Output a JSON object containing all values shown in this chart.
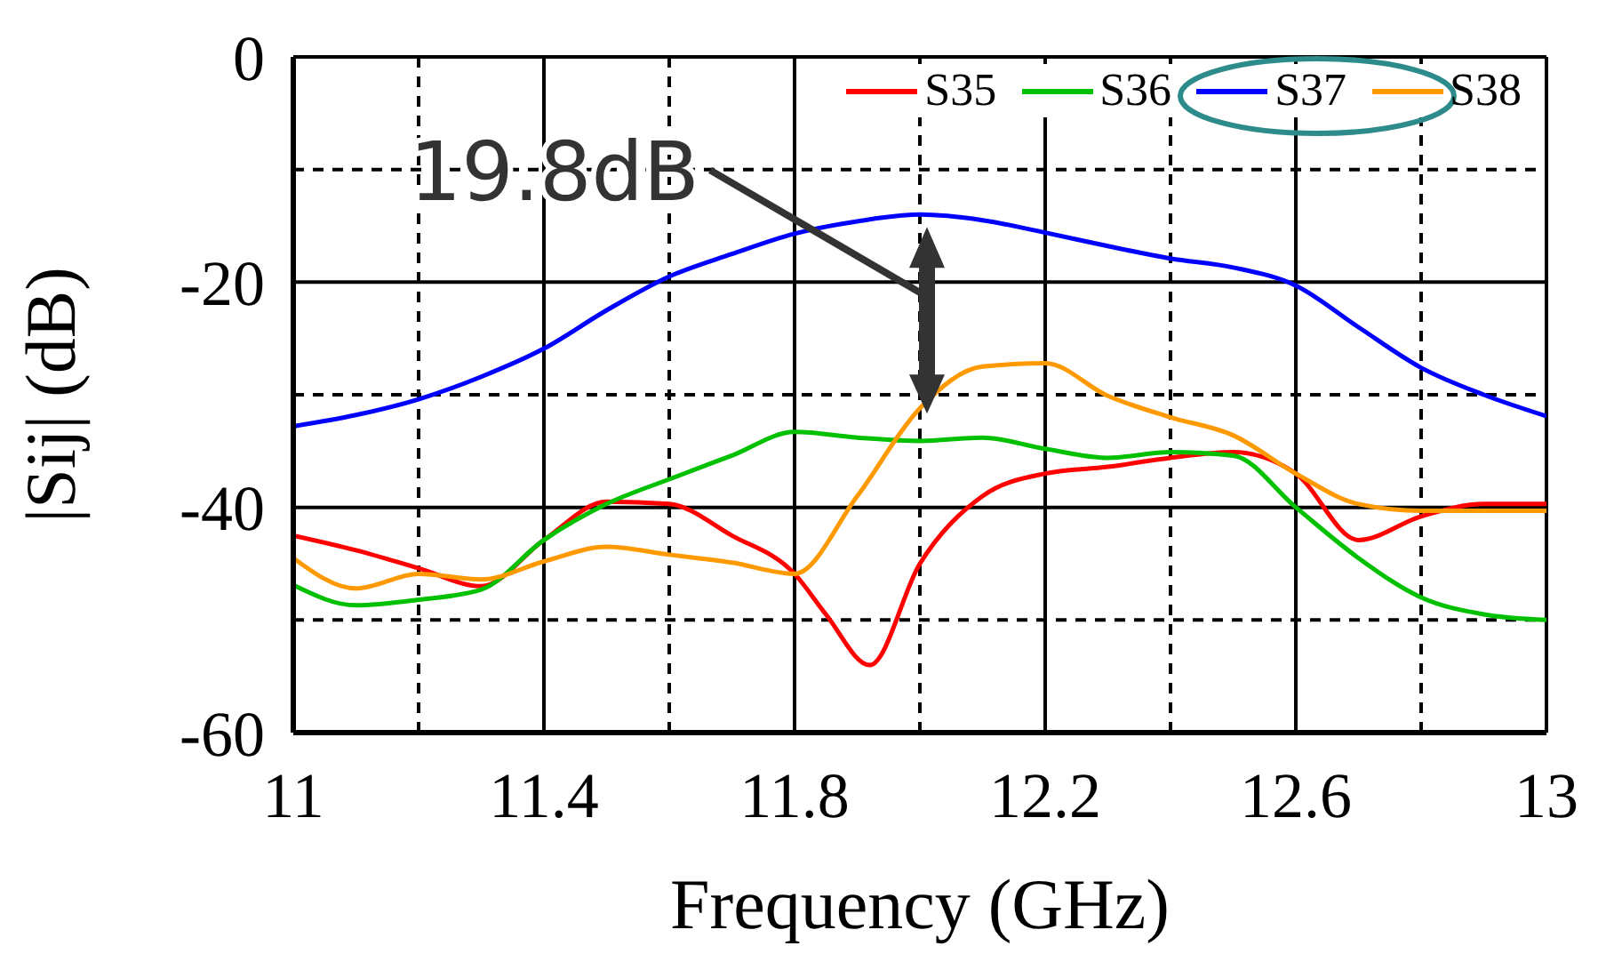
{
  "chart_data": {
    "type": "line",
    "xlabel": "Frequency (GHz)",
    "ylabel": "|Sij| (dB)",
    "xlim": [
      11,
      13
    ],
    "xticks": [
      11,
      {
        "value": 11.2,
        "label": null
      },
      11.4,
      {
        "value": 11.6,
        "label": null
      },
      11.8,
      {
        "value": 12.0,
        "label": null
      },
      12.2,
      {
        "value": 12.4,
        "label": null
      },
      12.6,
      {
        "value": 12.8,
        "label": null
      },
      13
    ],
    "ylim": [
      -60,
      0
    ],
    "yticks": [
      -60,
      {
        "value": -50,
        "label": null
      },
      -40,
      {
        "value": -30,
        "label": null
      },
      -20,
      {
        "value": -10,
        "label": null
      },
      0
    ],
    "grid": true,
    "legend": "top right",
    "marker": "none",
    "line_style": "solid",
    "x": [
      11.0,
      11.1,
      11.2,
      11.3,
      11.4,
      11.5,
      11.6,
      11.7,
      11.8,
      11.9,
      12.0,
      12.1,
      12.2,
      12.3,
      12.4,
      12.5,
      12.6,
      12.7,
      12.8,
      12.9,
      13.0
    ],
    "series": [
      {
        "name": "S35",
        "color": "#ff0000",
        "x": [
          11.0,
          11.1,
          11.2,
          11.3,
          11.4,
          11.5,
          11.6,
          11.7,
          11.8,
          11.85,
          11.92,
          12.0,
          12.1,
          12.2,
          12.3,
          12.4,
          12.5,
          12.6,
          12.7,
          12.8,
          12.9,
          13.0
        ],
        "values": [
          -42.5,
          -43.8,
          -45.4,
          -47,
          -42.9,
          -39.5,
          -39.7,
          -42.5,
          -45.9,
          -49.5,
          -54,
          -45,
          -39,
          -37,
          -36.4,
          -35.6,
          -35.1,
          -37,
          -42.9,
          -40.8,
          -39.7,
          -39.7
        ]
      },
      {
        "name": "S36",
        "color": "#00c000",
        "values": [
          -46.9,
          -48.7,
          -48.2,
          -47.3,
          -42.9,
          -39.7,
          -37.5,
          -35.4,
          -33.3,
          -33.8,
          -34.1,
          -33.8,
          -34.8,
          -35.6,
          -35.1,
          -35.4,
          -40,
          -44.5,
          -48,
          -49.5,
          -50
        ]
      },
      {
        "name": "S37",
        "color": "#0000ff",
        "values": [
          -32.8,
          -31.8,
          -30.4,
          -28.4,
          -25.9,
          -22.5,
          -19.5,
          -17.5,
          -15.7,
          -14.6,
          -14,
          -14.5,
          -15.6,
          -16.8,
          -17.9,
          -18.7,
          -20.3,
          -24,
          -27.6,
          -30,
          -31.9
        ]
      },
      {
        "name": "S38",
        "color": "#ff9900",
        "values": [
          -44.5,
          -47.2,
          -45.9,
          -46.4,
          -44.8,
          -43.5,
          -44.2,
          -44.9,
          -45.9,
          -39,
          -31.2,
          -27.5,
          -27.2,
          -30.1,
          -32,
          -33.6,
          -37,
          -39.7,
          -40.3,
          -40.3,
          -40.3
        ]
      }
    ],
    "annotations": [
      {
        "text": "19.8dB",
        "x": 12.0,
        "y": -14
      }
    ]
  }
}
